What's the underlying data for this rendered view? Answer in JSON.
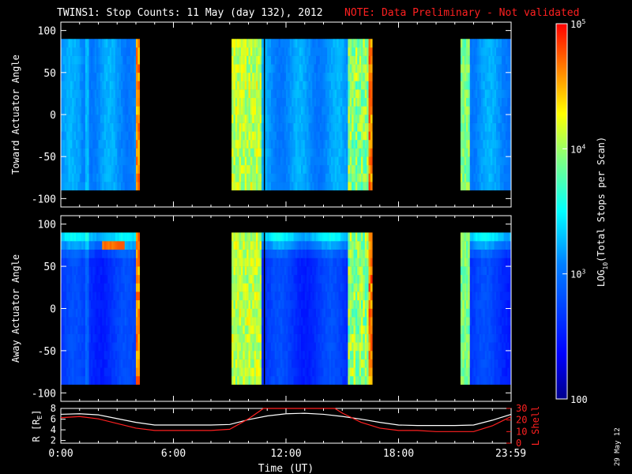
{
  "title": {
    "main": "TWINS1: Stop Counts: 11 May (day 132), 2012",
    "note": "NOTE: Data Preliminary - Not validated",
    "note_color": "#ff2020"
  },
  "date_stamp": "29 May 12",
  "colors": {
    "line_r": "#ffffff",
    "line_l": "#ff2020",
    "background": "#000000"
  },
  "chart_data": [
    {
      "type": "heatmap",
      "name": "toward",
      "ylabel": "Toward Actuator Angle",
      "ylim": [
        -110,
        110
      ],
      "yticks": [
        "100",
        "50",
        "0",
        "-50",
        "-100"
      ],
      "ytick_values": [
        100,
        50,
        0,
        -50,
        -100
      ],
      "y_data_range": [
        -90,
        90
      ],
      "data_intervals_hours": [
        [
          0.0,
          4.2
        ],
        [
          9.1,
          16.6
        ],
        [
          21.3,
          24.0
        ]
      ],
      "gap_line_hour": 10.85,
      "color_scale": "log",
      "variant": "toward"
    },
    {
      "type": "heatmap",
      "name": "away",
      "ylabel": "Away Actuator Angle",
      "ylim": [
        -110,
        110
      ],
      "yticks": [
        "100",
        "50",
        "0",
        "-50",
        "-100"
      ],
      "ytick_values": [
        100,
        50,
        0,
        -50,
        -100
      ],
      "y_data_range": [
        -90,
        90
      ],
      "data_intervals_hours": [
        [
          0.0,
          4.2
        ],
        [
          9.1,
          16.6
        ],
        [
          21.3,
          24.0
        ]
      ],
      "gap_line_hour": 10.85,
      "color_scale": "log",
      "variant": "away"
    },
    {
      "type": "line",
      "name": "orbit",
      "ylabel_left": "R [R",
      "ylabel_left_sub": "E",
      "ylabel_left_end": "]",
      "ylabel_right": "L Shell",
      "left_ticks": [
        "8",
        "6",
        "4",
        "2"
      ],
      "left_tick_values": [
        8,
        6,
        4,
        2
      ],
      "left_ylim": [
        1.5,
        8
      ],
      "right_ticks": [
        "30",
        "20",
        "10",
        "0"
      ],
      "right_tick_values": [
        30,
        20,
        10,
        0
      ],
      "right_ylim": [
        0,
        30
      ],
      "series": [
        {
          "name": "R",
          "x": [
            0,
            1,
            2,
            3,
            4,
            5,
            6,
            7,
            8,
            9,
            10,
            11,
            12,
            13,
            14,
            15,
            16,
            17,
            18,
            19,
            20,
            21,
            22,
            23,
            24
          ],
          "values": [
            6.9,
            7.0,
            6.8,
            6.1,
            5.4,
            4.9,
            4.9,
            4.9,
            4.9,
            5.0,
            5.9,
            6.6,
            7.0,
            7.1,
            6.9,
            6.5,
            6.0,
            5.4,
            4.9,
            4.8,
            4.8,
            4.8,
            4.9,
            5.8,
            6.9
          ]
        },
        {
          "name": "L",
          "x": [
            0,
            1,
            2,
            3,
            4,
            5,
            6,
            7,
            8,
            9,
            10,
            10.8,
            14.6,
            15,
            16,
            17,
            18,
            19,
            20,
            21,
            22,
            23,
            24
          ],
          "values": [
            22,
            23,
            21,
            17,
            13,
            11,
            11,
            11,
            11,
            12,
            21,
            30,
            30,
            26,
            18,
            13,
            11,
            11,
            10,
            10,
            10,
            15,
            23
          ]
        }
      ],
      "xlabel": "Time (UT)",
      "xticks": [
        "0:00",
        "6:00",
        "12:00",
        "18:00",
        "23:59"
      ],
      "xtick_values": [
        0,
        6,
        12,
        18,
        23.98
      ],
      "xlim": [
        0,
        24
      ]
    }
  ],
  "colorbar": {
    "label_pre": "LOG",
    "label_sub": "10",
    "label_post": "(Total Stops per Scan)",
    "ticks": [
      {
        "base": "10",
        "exp": "5",
        "value": 100000
      },
      {
        "base": "10",
        "exp": "4",
        "value": 10000
      },
      {
        "base": "10",
        "exp": "3",
        "value": 1000
      },
      {
        "base": "100",
        "exp": "",
        "value": 100
      }
    ],
    "range": [
      100,
      100000
    ],
    "scale": "log"
  }
}
